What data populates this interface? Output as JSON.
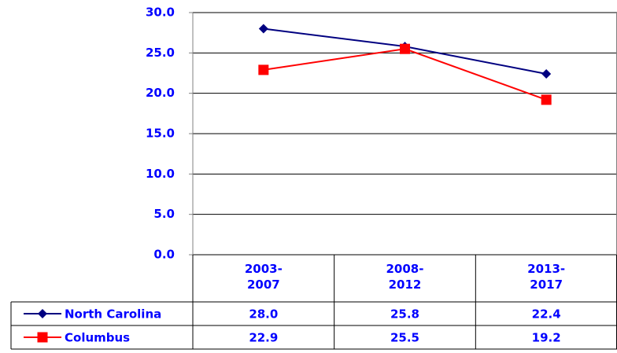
{
  "chart_data": {
    "type": "line",
    "categories": [
      "2003-\n2007",
      "2008-\n2012",
      "2013-\n2017"
    ],
    "series": [
      {
        "name": "North Carolina",
        "color": "#000080",
        "marker": "diamond",
        "values": [
          28.0,
          25.8,
          22.4
        ],
        "value_labels": [
          "28.0",
          "25.8",
          "22.4"
        ]
      },
      {
        "name": "Columbus",
        "color": "#ff0000",
        "marker": "square",
        "values": [
          22.9,
          25.5,
          19.2
        ],
        "value_labels": [
          "22.9",
          "25.5",
          "19.2"
        ]
      }
    ],
    "ylim": [
      0,
      30
    ],
    "yticks": [
      {
        "value": 0,
        "label": "0.0"
      },
      {
        "value": 5,
        "label": "5.0"
      },
      {
        "value": 10,
        "label": "10.0"
      },
      {
        "value": 15,
        "label": "15.0"
      },
      {
        "value": 20,
        "label": "20.0"
      },
      {
        "value": 25,
        "label": "25.0"
      },
      {
        "value": 30,
        "label": "30.0"
      }
    ],
    "grid": true,
    "data_table": true
  }
}
